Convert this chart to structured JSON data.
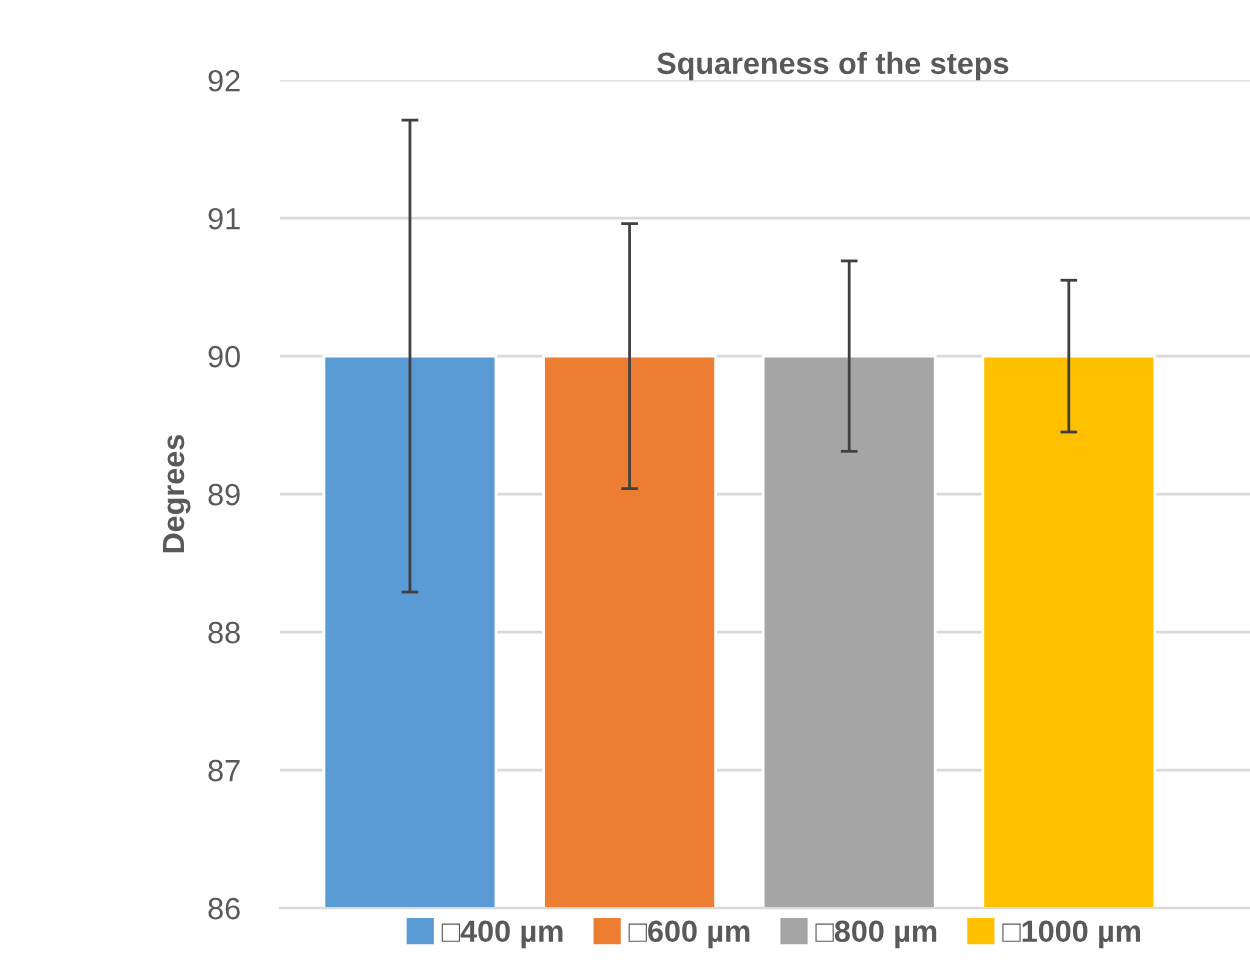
{
  "chart_data": {
    "type": "bar",
    "title": "Squareness of the steps",
    "ylabel": "Degrees",
    "categories": [
      null
    ],
    "series": [
      {
        "name": "□400 µm",
        "color": "#5b9bd5",
        "values": [
          90
        ],
        "errors": [
          1.71
        ]
      },
      {
        "name": "□600 µm",
        "color": "#ed7d31",
        "values": [
          90
        ],
        "errors": [
          0.96
        ]
      },
      {
        "name": "□800 µm",
        "color": "#a5a5a5",
        "values": [
          90
        ],
        "errors": [
          0.69
        ]
      },
      {
        "name": "□1000 µm",
        "color": "#ffc000",
        "values": [
          90
        ],
        "errors": [
          0.55
        ]
      }
    ],
    "ylim": [
      86,
      92
    ],
    "yticks": [
      86,
      87,
      88,
      89,
      90,
      91,
      92
    ],
    "grid": "y",
    "legend": "bottom"
  }
}
